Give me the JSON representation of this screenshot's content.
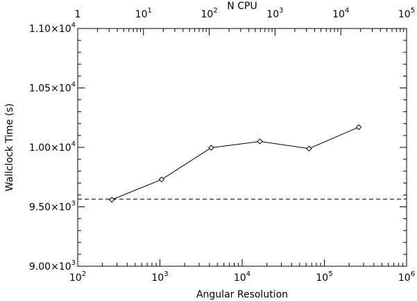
{
  "chart_data": {
    "type": "line",
    "xlabel": "Angular Resolution",
    "x2label": "N CPU",
    "ylabel": "Wallclock Time (s)",
    "x_scale": "log",
    "xlim": [
      100,
      1000000
    ],
    "x2_scale": "log",
    "x2lim": [
      1,
      100000
    ],
    "ylim": [
      9000,
      11000
    ],
    "grid": false,
    "x_ticks": [
      {
        "base": "10",
        "exp": "2",
        "value": 100
      },
      {
        "base": "10",
        "exp": "3",
        "value": 1000
      },
      {
        "base": "10",
        "exp": "4",
        "value": 10000
      },
      {
        "base": "10",
        "exp": "5",
        "value": 100000
      },
      {
        "base": "10",
        "exp": "6",
        "value": 1000000
      }
    ],
    "x2_ticks": [
      {
        "base": "1",
        "exp": "",
        "value": 1
      },
      {
        "base": "10",
        "exp": "1",
        "value": 10
      },
      {
        "base": "10",
        "exp": "2",
        "value": 100
      },
      {
        "base": "10",
        "exp": "3",
        "value": 1000
      },
      {
        "base": "10",
        "exp": "4",
        "value": 10000
      },
      {
        "base": "10",
        "exp": "5",
        "value": 100000
      }
    ],
    "y_ticks": [
      {
        "mant": "9.00×10",
        "exp": "3",
        "value": 9000
      },
      {
        "mant": "9.50×10",
        "exp": "3",
        "value": 9500
      },
      {
        "mant": "1.00×10",
        "exp": "4",
        "value": 10000
      },
      {
        "mant": "1.05×10",
        "exp": "4",
        "value": 10500
      },
      {
        "mant": "1.10×10",
        "exp": "4",
        "value": 11000
      }
    ],
    "series": [
      {
        "x": [
          260,
          1050,
          4200,
          16400,
          65000,
          262000
        ],
        "y": [
          9560,
          9730,
          9997,
          10050,
          9990,
          10170
        ],
        "marker": "diamond",
        "color": "#000000"
      }
    ],
    "reference_line": {
      "y": 9565,
      "style": "dashed",
      "color": "#000000"
    }
  }
}
